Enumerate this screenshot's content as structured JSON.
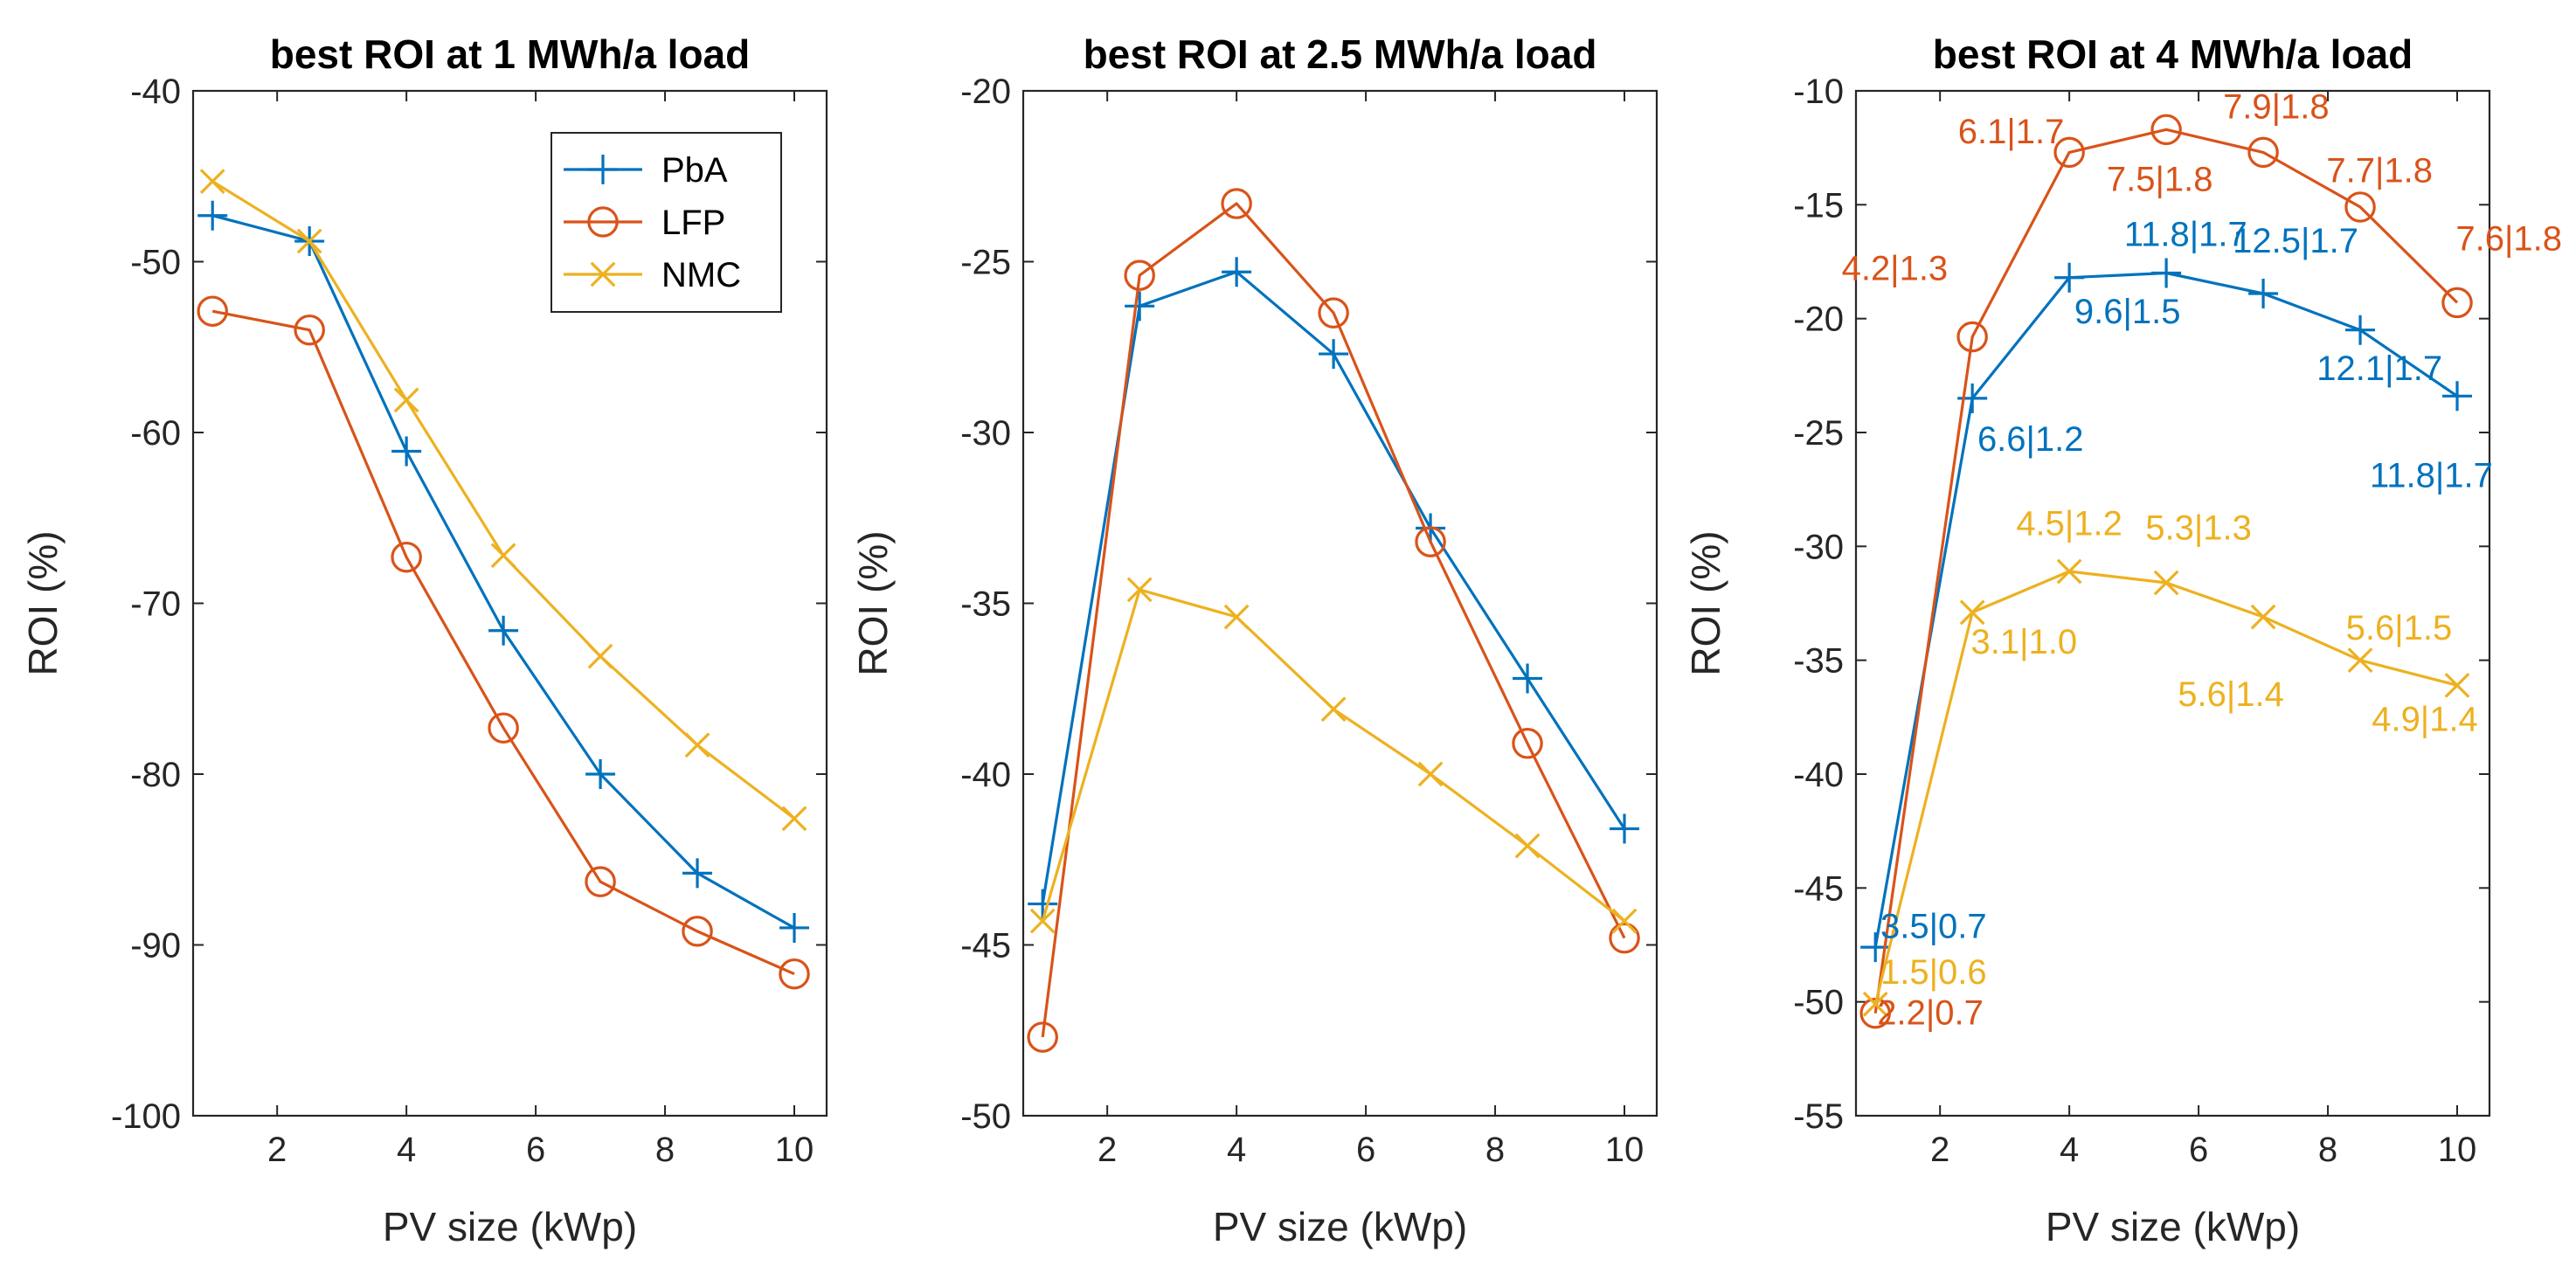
{
  "colors": {
    "pba": "#0072BD",
    "lfp": "#D95319",
    "nmc": "#EDB120",
    "axis": "#262626"
  },
  "legend": {
    "entries": [
      "PbA",
      "LFP",
      "NMC"
    ]
  },
  "chart_data": [
    {
      "type": "line",
      "title": "best ROI at 1 MWh/a load",
      "xlabel": "PV size (kWp)",
      "ylabel": "ROI (%)",
      "xlim": [
        0.7,
        10.5
      ],
      "ylim": [
        -100,
        -40
      ],
      "xticks": [
        2,
        4,
        6,
        8,
        10
      ],
      "yticks": [
        -100,
        -90,
        -80,
        -70,
        -60,
        -50,
        -40
      ],
      "x": [
        1,
        2.5,
        4,
        5.5,
        7,
        8.5,
        10
      ],
      "series": [
        {
          "name": "PbA",
          "marker": "plus",
          "values": [
            -47.3,
            -48.8,
            -61.1,
            -71.6,
            -80.0,
            -85.8,
            -89.0
          ]
        },
        {
          "name": "LFP",
          "marker": "circle",
          "values": [
            -52.9,
            -54.0,
            -67.3,
            -77.3,
            -86.3,
            -89.2,
            -91.7
          ]
        },
        {
          "name": "NMC",
          "marker": "x",
          "values": [
            -45.3,
            -48.8,
            -58.1,
            -67.2,
            -73.1,
            -78.3,
            -82.6
          ]
        }
      ],
      "annotations": []
    },
    {
      "type": "line",
      "title": "best ROI at 2.5 MWh/a load",
      "xlabel": "PV size (kWp)",
      "ylabel": "ROI (%)",
      "xlim": [
        0.7,
        10.5
      ],
      "ylim": [
        -50,
        -20
      ],
      "xticks": [
        2,
        4,
        6,
        8,
        10
      ],
      "yticks": [
        -50,
        -45,
        -40,
        -35,
        -30,
        -25,
        -20
      ],
      "x": [
        1,
        2.5,
        4,
        5.5,
        7,
        8.5,
        10
      ],
      "series": [
        {
          "name": "PbA",
          "marker": "plus",
          "values": [
            -43.8,
            -26.3,
            -25.3,
            -27.7,
            -32.8,
            -37.2,
            -41.6
          ]
        },
        {
          "name": "LFP",
          "marker": "circle",
          "values": [
            -47.7,
            -25.4,
            -23.3,
            -26.5,
            -33.2,
            -39.1,
            -44.8
          ]
        },
        {
          "name": "NMC",
          "marker": "x",
          "values": [
            -44.3,
            -34.6,
            -35.4,
            -38.1,
            -40.0,
            -42.1,
            -44.3
          ]
        }
      ],
      "annotations": []
    },
    {
      "type": "line",
      "title": "best ROI at 4 MWh/a load",
      "xlabel": "PV size (kWp)",
      "ylabel": "ROI (%)",
      "xlim": [
        0.7,
        10.5
      ],
      "ylim": [
        -55,
        -10
      ],
      "xticks": [
        2,
        4,
        6,
        8,
        10
      ],
      "yticks": [
        -55,
        -50,
        -45,
        -40,
        -35,
        -30,
        -25,
        -20,
        -15,
        -10
      ],
      "x": [
        1,
        2.5,
        4,
        5.5,
        7,
        8.5,
        10
      ],
      "series": [
        {
          "name": "PbA",
          "marker": "plus",
          "values": [
            -47.6,
            -23.5,
            -18.2,
            -18.0,
            -18.9,
            -20.5,
            -23.4
          ]
        },
        {
          "name": "LFP",
          "marker": "circle",
          "values": [
            -50.5,
            -20.8,
            -12.7,
            -11.7,
            -12.7,
            -15.1,
            -19.3
          ]
        },
        {
          "name": "NMC",
          "marker": "x",
          "values": [
            -50.1,
            -32.9,
            -31.1,
            -31.6,
            -33.1,
            -35.0,
            -36.1
          ]
        }
      ],
      "annotations": [
        {
          "series": "LFP",
          "text": "2.2|0.7",
          "x": 1.85,
          "y": -51.0
        },
        {
          "series": "LFP",
          "text": "4.2|1.3",
          "x": 1.3,
          "y": -18.3
        },
        {
          "series": "LFP",
          "text": "6.1|1.7",
          "x": 3.1,
          "y": -12.3
        },
        {
          "series": "LFP",
          "text": "7.5|1.8",
          "x": 5.4,
          "y": -14.4
        },
        {
          "series": "LFP",
          "text": "7.9|1.8",
          "x": 7.2,
          "y": -11.2
        },
        {
          "series": "LFP",
          "text": "7.7|1.8",
          "x": 8.8,
          "y": -14.0
        },
        {
          "series": "LFP",
          "text": "7.6|1.8",
          "x": 10.8,
          "y": -17.0
        },
        {
          "series": "PbA",
          "text": "3.5|0.7",
          "x": 1.9,
          "y": -47.2
        },
        {
          "series": "PbA",
          "text": "6.6|1.2",
          "x": 3.4,
          "y": -25.8
        },
        {
          "series": "PbA",
          "text": "9.6|1.5",
          "x": 4.9,
          "y": -20.2
        },
        {
          "series": "PbA",
          "text": "11.8|1.7",
          "x": 5.8,
          "y": -16.8
        },
        {
          "series": "PbA",
          "text": "12.5|1.7",
          "x": 7.5,
          "y": -17.1
        },
        {
          "series": "PbA",
          "text": "12.1|1.7",
          "x": 8.8,
          "y": -22.7
        },
        {
          "series": "PbA",
          "text": "11.8|1.7",
          "x": 9.6,
          "y": -27.4
        },
        {
          "series": "NMC",
          "text": "1.5|0.6",
          "x": 1.9,
          "y": -49.2
        },
        {
          "series": "NMC",
          "text": "3.1|1.0",
          "x": 3.3,
          "y": -34.7
        },
        {
          "series": "NMC",
          "text": "4.5|1.2",
          "x": 4.0,
          "y": -29.5
        },
        {
          "series": "NMC",
          "text": "5.3|1.3",
          "x": 6.0,
          "y": -29.7
        },
        {
          "series": "NMC",
          "text": "5.6|1.4",
          "x": 6.5,
          "y": -37.0
        },
        {
          "series": "NMC",
          "text": "5.6|1.5",
          "x": 9.1,
          "y": -34.1
        },
        {
          "series": "NMC",
          "text": "4.9|1.4",
          "x": 9.5,
          "y": -38.1
        }
      ]
    }
  ]
}
